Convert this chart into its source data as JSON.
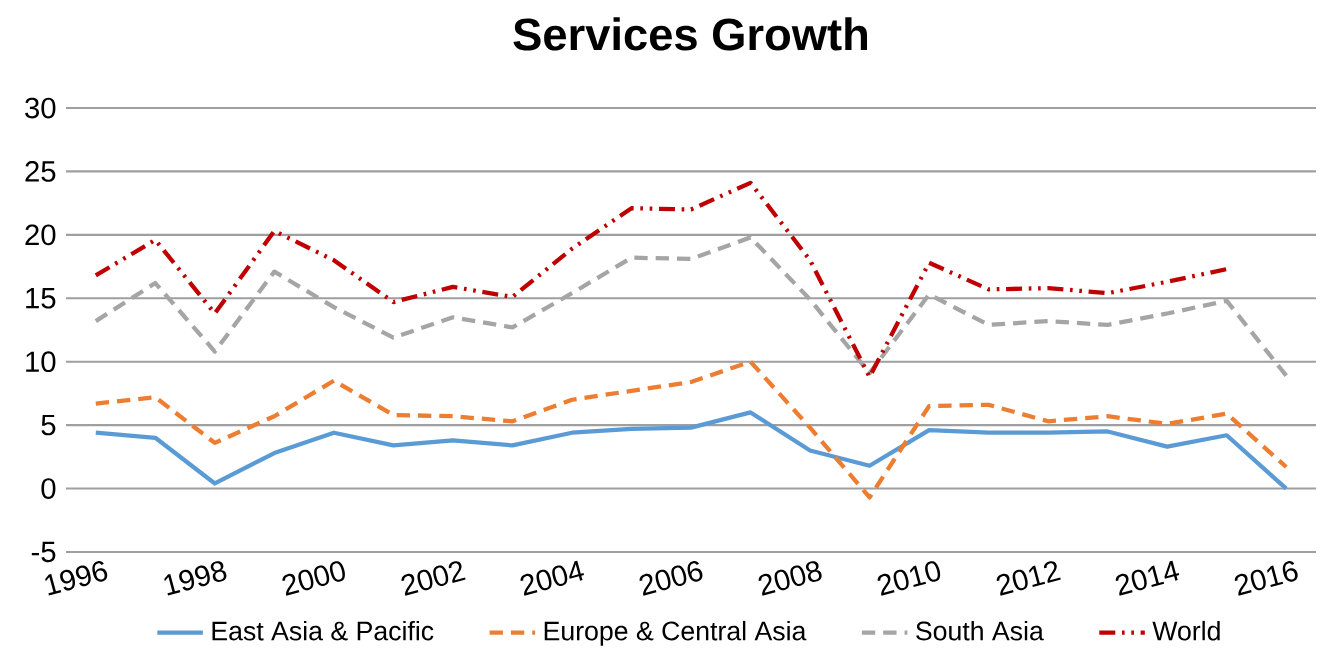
{
  "chart_data": {
    "type": "line",
    "title": "Services Growth",
    "categories": [
      "1996",
      null,
      "1998",
      null,
      "2000",
      null,
      "2002",
      null,
      "2004",
      null,
      "2006",
      null,
      "2008",
      null,
      "2010",
      null,
      "2012",
      null,
      "2014",
      null,
      "2016"
    ],
    "series": [
      {
        "name": "East Asia & Pacific",
        "color": "#5b9bd5",
        "line_style": "solid",
        "values": [
          4.4,
          4.0,
          0.4,
          2.8,
          4.4,
          3.4,
          3.8,
          3.4,
          4.4,
          4.7,
          4.8,
          6.0,
          3.0,
          1.8,
          4.6,
          4.4,
          4.4,
          4.5,
          3.3,
          4.2,
          0
        ]
      },
      {
        "name": "Europe & Central Asia",
        "color": "#ed7d31",
        "line_style": "dashed",
        "values": [
          6.7,
          7.2,
          3.6,
          5.7,
          8.5,
          5.8,
          5.7,
          5.3,
          7.0,
          7.7,
          8.4,
          10.0,
          4.8,
          -0.7,
          6.5,
          6.6,
          5.3,
          5.7,
          5.1,
          5.9,
          1.7
        ]
      },
      {
        "name": "South Asia",
        "color": "#a5a5a5",
        "line_style": "dashed",
        "values": [
          13.2,
          16.2,
          10.8,
          17.1,
          14.3,
          11.9,
          13.5,
          12.7,
          15.4,
          18.2,
          18.1,
          19.8,
          14.9,
          9.1,
          15.3,
          12.9,
          13.2,
          12.9,
          13.8,
          14.8,
          8.9
        ]
      },
      {
        "name": "World",
        "color": "#c00000",
        "line_style": "dotted",
        "values": [
          16.8,
          19.6,
          13.8,
          20.3,
          18.0,
          14.7,
          15.9,
          15.1,
          18.9,
          22.1,
          22.0,
          24.1,
          18.0,
          8.8,
          17.8,
          15.7,
          15.8,
          15.4,
          16.3,
          17.3,
          null
        ]
      }
    ],
    "ylim": [
      -5,
      30
    ],
    "yticks": [
      -5,
      0,
      5,
      10,
      15,
      20,
      25,
      30
    ],
    "grid": "y",
    "legend": "bottom",
    "marker": "none"
  }
}
